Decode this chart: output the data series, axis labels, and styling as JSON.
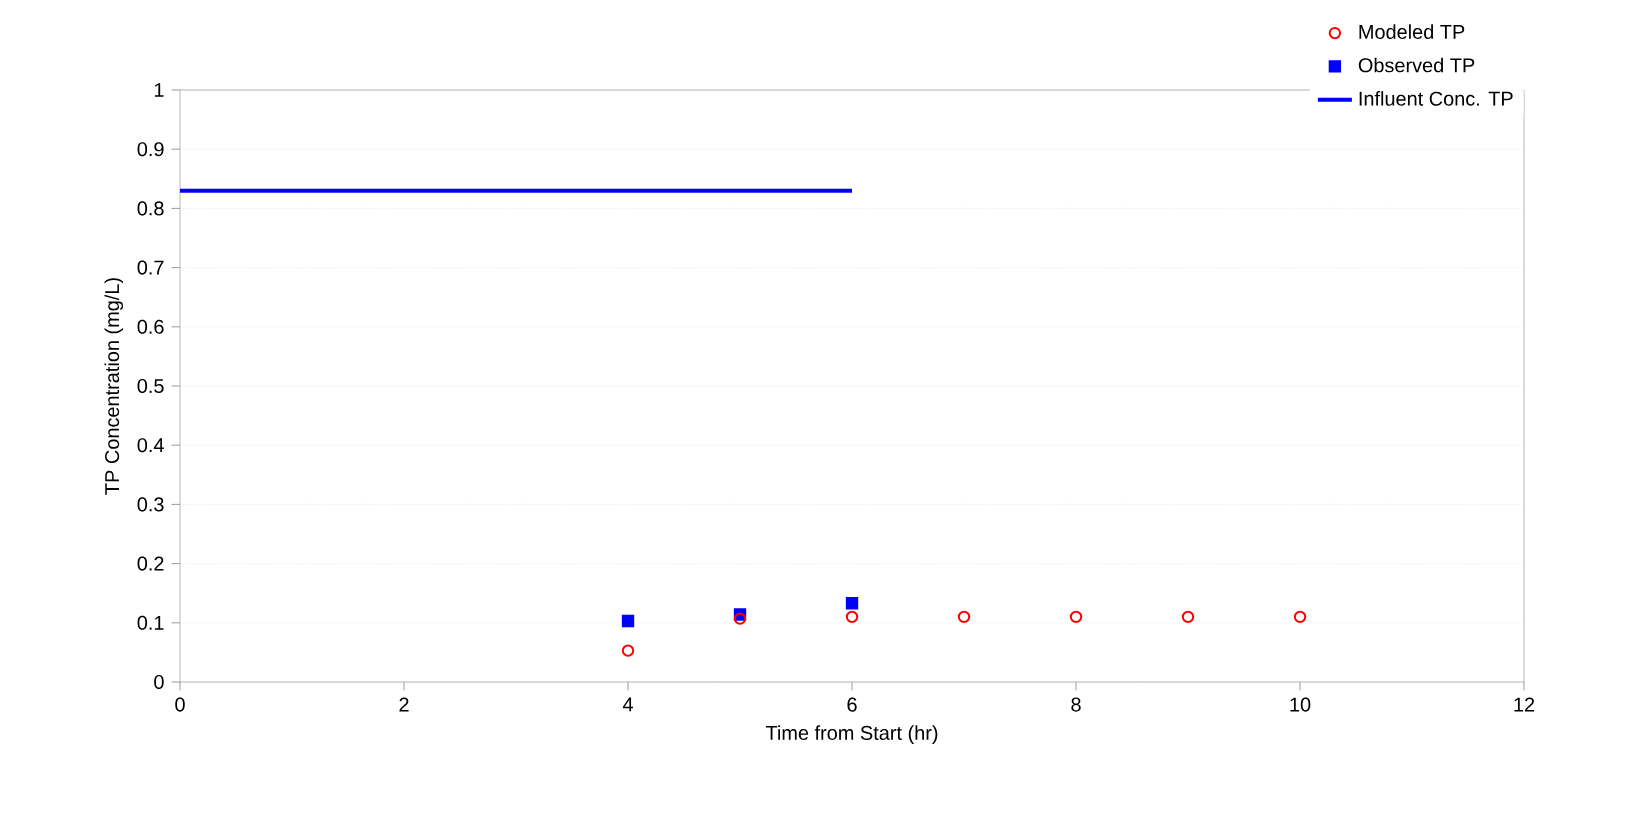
{
  "chart_data": {
    "type": "scatter",
    "xlabel": "Time from Start (hr)",
    "ylabel": "TP Concentration (mg/L)",
    "xlim": [
      0,
      12
    ],
    "xticks": [
      0,
      2,
      4,
      6,
      8,
      10,
      12
    ],
    "ylim": [
      0,
      1
    ],
    "yticks": [
      0,
      0.1,
      0.2,
      0.3,
      0.4,
      0.5,
      0.6,
      0.7,
      0.8,
      0.9,
      1
    ],
    "grid": "y",
    "legend": "top right",
    "series": [
      {
        "name": "Modeled TP",
        "marker": "circle",
        "color": "#ff0000",
        "x": [
          4,
          5,
          6,
          7,
          8,
          9,
          10
        ],
        "values": [
          0.053,
          0.107,
          0.11,
          0.11,
          0.11,
          0.11,
          0.11
        ]
      },
      {
        "name": "Observed TP",
        "marker": "square",
        "color": "#0000ff",
        "x": [
          4,
          5,
          6
        ],
        "values": [
          0.103,
          0.114,
          0.133
        ]
      },
      {
        "name": "Influent Conc. TP",
        "type": "line",
        "line_style": "solid",
        "color": "#0000ff",
        "x": [
          0,
          6
        ],
        "values": [
          0.83,
          0.83
        ]
      }
    ]
  }
}
